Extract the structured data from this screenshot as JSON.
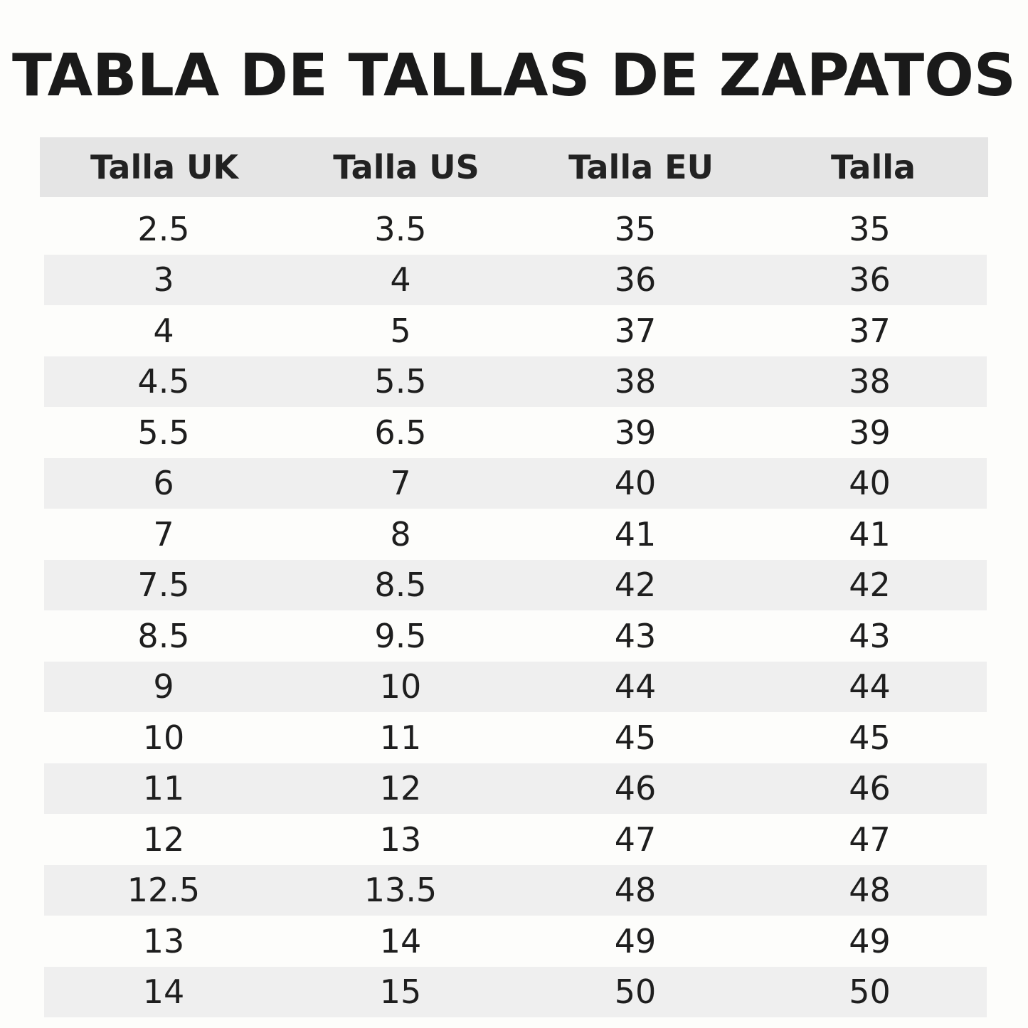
{
  "title": "TABLA DE TALLAS DE ZAPATOS",
  "table": {
    "headers": [
      "Talla UK",
      "Talla US",
      "Talla EU",
      "Talla"
    ],
    "rows": [
      [
        "2.5",
        "3.5",
        "35",
        "35"
      ],
      [
        "3",
        "4",
        "36",
        "36"
      ],
      [
        "4",
        "5",
        "37",
        "37"
      ],
      [
        "4.5",
        "5.5",
        "38",
        "38"
      ],
      [
        "5.5",
        "6.5",
        "39",
        "39"
      ],
      [
        "6",
        "7",
        "40",
        "40"
      ],
      [
        "7",
        "8",
        "41",
        "41"
      ],
      [
        "7.5",
        "8.5",
        "42",
        "42"
      ],
      [
        "8.5",
        "9.5",
        "43",
        "43"
      ],
      [
        "9",
        "10",
        "44",
        "44"
      ],
      [
        "10",
        "11",
        "45",
        "45"
      ],
      [
        "11",
        "12",
        "46",
        "46"
      ],
      [
        "12",
        "13",
        "47",
        "47"
      ],
      [
        "12.5",
        "13.5",
        "48",
        "48"
      ],
      [
        "13",
        "14",
        "49",
        "49"
      ],
      [
        "14",
        "15",
        "50",
        "50"
      ]
    ]
  },
  "colors": {
    "header_background": "#e5e5e5",
    "shaded_row_background": "#efefef",
    "page_background": "#fdfdfb",
    "text": "#1a1a1a"
  }
}
